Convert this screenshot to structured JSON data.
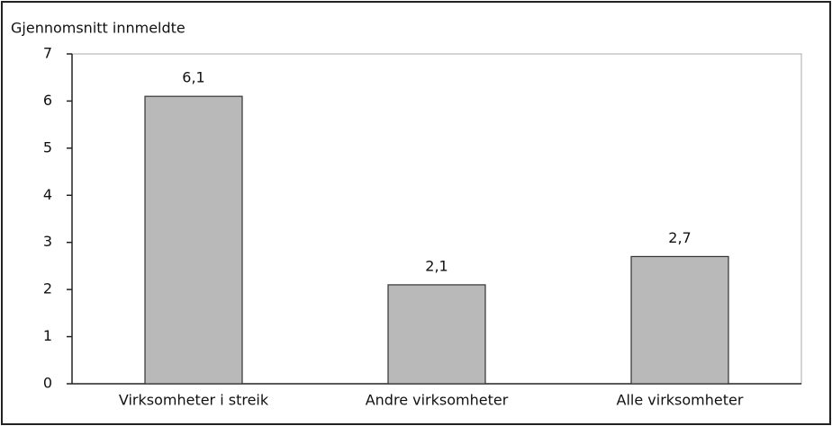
{
  "chart_data": {
    "type": "bar",
    "title": "Gjennomsnitt innmeldte",
    "categories": [
      "Virksomheter i streik",
      "Andre virksomheter",
      "Alle virksomheter"
    ],
    "values": [
      6.1,
      2.1,
      2.7
    ],
    "value_labels": [
      "6,1",
      "2,1",
      "2,7"
    ],
    "color": "#b9b9b9",
    "ylim": [
      0,
      7
    ],
    "yticks": [
      0,
      1,
      2,
      3,
      4,
      5,
      6,
      7
    ]
  }
}
